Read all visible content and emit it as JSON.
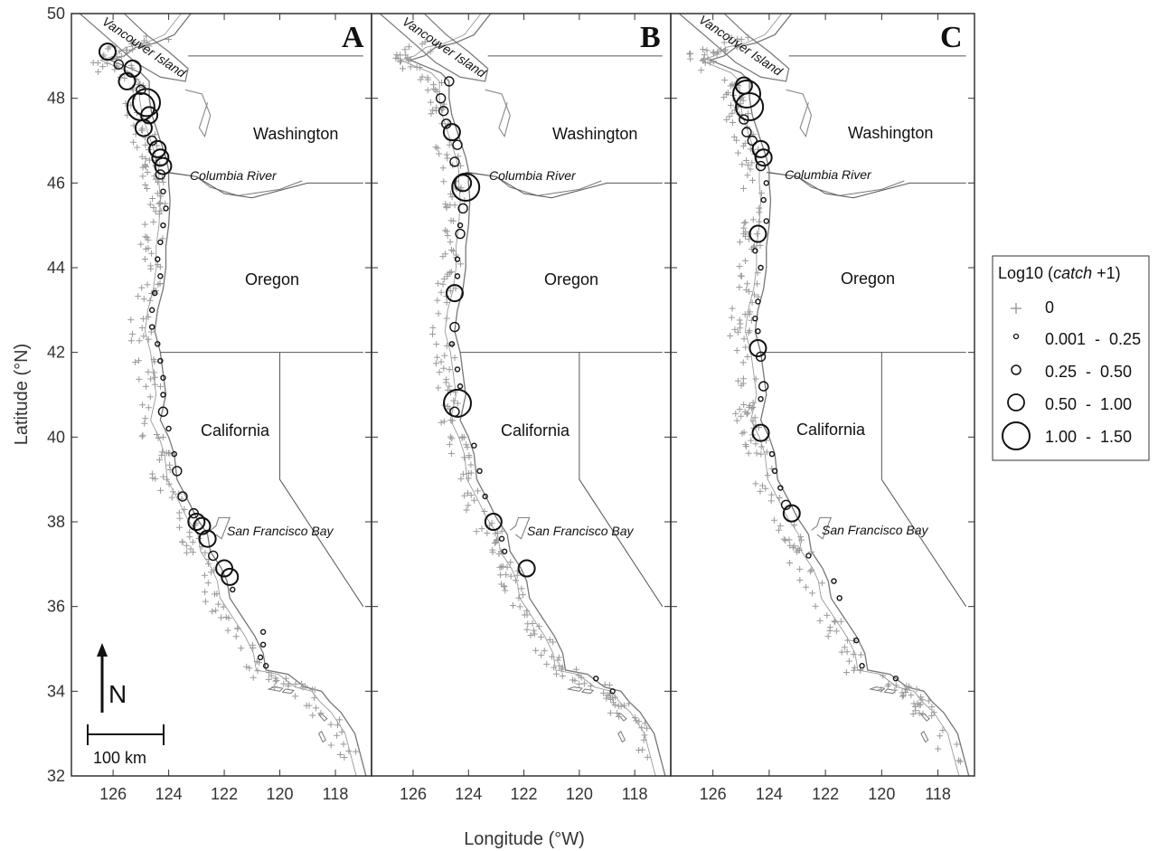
{
  "figure": {
    "panels": [
      "A",
      "B",
      "C"
    ],
    "states": [
      "Washington",
      "Oregon",
      "California"
    ],
    "places": [
      "Vancouver Island",
      "Columbia River",
      "San Francisco Bay"
    ],
    "x_label": "Longitude (°W)",
    "y_label": "Latitude (°N)",
    "x_ticks": [
      126,
      124,
      122,
      120,
      118
    ],
    "y_ticks": [
      50,
      48,
      46,
      44,
      42,
      40,
      38,
      36,
      34,
      32
    ],
    "xlim": [
      127.5,
      116.7
    ],
    "ylim": [
      32,
      50
    ],
    "north_arrow": "N",
    "scale_bar": "100 km"
  },
  "legend": {
    "title_prefix": "Log10 (",
    "title_italic": "catch",
    "title_suffix": " +1)",
    "entries": [
      {
        "label": "0",
        "marker": "plus"
      },
      {
        "label": "0.001  -  0.25",
        "marker": "circle-xs"
      },
      {
        "label": "0.25  -  0.50",
        "marker": "circle-s"
      },
      {
        "label": "0.50  -  1.00",
        "marker": "circle-m"
      },
      {
        "label": "1.00  -  1.50",
        "marker": "circle-l"
      }
    ]
  },
  "chart_data": {
    "type": "scatter",
    "x_label": "Longitude (°W)",
    "y_label": "Latitude (°N)",
    "xlim": [
      127.5,
      116.7
    ],
    "ylim": [
      32,
      50
    ],
    "series": [
      {
        "name": "A",
        "points": [
          [
            126.2,
            49.1,
            3
          ],
          [
            125.8,
            48.8,
            2
          ],
          [
            125.3,
            48.7,
            3
          ],
          [
            125.5,
            48.4,
            3
          ],
          [
            125.0,
            48.2,
            2
          ],
          [
            125.0,
            47.8,
            4
          ],
          [
            124.8,
            47.9,
            4
          ],
          [
            124.7,
            47.6,
            3
          ],
          [
            124.9,
            47.3,
            3
          ],
          [
            124.6,
            47.0,
            2
          ],
          [
            124.4,
            46.8,
            3
          ],
          [
            124.3,
            46.6,
            3
          ],
          [
            124.2,
            46.4,
            3
          ],
          [
            124.3,
            46.2,
            2
          ],
          [
            124.2,
            45.8,
            1
          ],
          [
            124.1,
            45.4,
            1
          ],
          [
            124.2,
            45.0,
            1
          ],
          [
            124.3,
            44.6,
            1
          ],
          [
            124.4,
            44.2,
            1
          ],
          [
            124.3,
            43.8,
            1
          ],
          [
            124.5,
            43.4,
            1
          ],
          [
            124.6,
            43.0,
            1
          ],
          [
            124.6,
            42.6,
            1
          ],
          [
            124.4,
            42.2,
            1
          ],
          [
            124.3,
            41.8,
            1
          ],
          [
            124.2,
            41.4,
            1
          ],
          [
            124.2,
            41.0,
            1
          ],
          [
            124.2,
            40.6,
            2
          ],
          [
            124.0,
            40.2,
            1
          ],
          [
            123.8,
            39.6,
            1
          ],
          [
            123.7,
            39.2,
            2
          ],
          [
            123.5,
            38.6,
            2
          ],
          [
            123.1,
            38.2,
            2
          ],
          [
            123.0,
            38.0,
            3
          ],
          [
            122.8,
            37.9,
            3
          ],
          [
            122.6,
            37.6,
            3
          ],
          [
            122.4,
            37.2,
            2
          ],
          [
            122.0,
            36.9,
            3
          ],
          [
            121.8,
            36.7,
            3
          ],
          [
            121.7,
            36.4,
            1
          ],
          [
            120.6,
            35.4,
            1
          ],
          [
            120.6,
            35.1,
            1
          ],
          [
            120.7,
            34.8,
            1
          ],
          [
            120.5,
            34.6,
            1
          ]
        ]
      },
      {
        "name": "B",
        "points": [
          [
            124.7,
            48.4,
            2
          ],
          [
            125.0,
            48.0,
            2
          ],
          [
            124.9,
            47.7,
            2
          ],
          [
            124.8,
            47.4,
            2
          ],
          [
            124.6,
            47.2,
            3
          ],
          [
            124.4,
            46.9,
            2
          ],
          [
            124.5,
            46.5,
            2
          ],
          [
            124.2,
            46.0,
            3
          ],
          [
            124.1,
            45.9,
            4
          ],
          [
            124.2,
            45.4,
            2
          ],
          [
            124.3,
            45.0,
            1
          ],
          [
            124.3,
            44.8,
            2
          ],
          [
            124.4,
            44.2,
            1
          ],
          [
            124.4,
            43.8,
            1
          ],
          [
            124.5,
            43.4,
            3
          ],
          [
            124.5,
            42.6,
            2
          ],
          [
            124.6,
            42.2,
            1
          ],
          [
            124.4,
            41.6,
            1
          ],
          [
            124.3,
            41.2,
            1
          ],
          [
            124.4,
            40.8,
            4
          ],
          [
            124.5,
            40.6,
            2
          ],
          [
            123.8,
            39.8,
            1
          ],
          [
            123.6,
            39.2,
            1
          ],
          [
            123.4,
            38.6,
            1
          ],
          [
            123.1,
            38.0,
            3
          ],
          [
            122.8,
            37.6,
            1
          ],
          [
            122.7,
            37.3,
            1
          ],
          [
            121.9,
            36.9,
            3
          ],
          [
            119.4,
            34.3,
            1
          ],
          [
            118.8,
            34.0,
            1
          ]
        ]
      },
      {
        "name": "C",
        "points": [
          [
            124.9,
            48.3,
            3
          ],
          [
            124.8,
            48.1,
            4
          ],
          [
            124.7,
            47.8,
            4
          ],
          [
            124.9,
            47.5,
            2
          ],
          [
            124.8,
            47.2,
            2
          ],
          [
            124.6,
            47.0,
            2
          ],
          [
            124.3,
            46.8,
            3
          ],
          [
            124.2,
            46.6,
            3
          ],
          [
            124.3,
            46.4,
            2
          ],
          [
            124.1,
            46.0,
            1
          ],
          [
            124.2,
            45.6,
            1
          ],
          [
            124.1,
            45.1,
            1
          ],
          [
            124.4,
            44.8,
            3
          ],
          [
            124.5,
            44.4,
            1
          ],
          [
            124.3,
            44.0,
            1
          ],
          [
            124.4,
            43.2,
            1
          ],
          [
            124.5,
            42.8,
            1
          ],
          [
            124.4,
            42.5,
            1
          ],
          [
            124.4,
            42.1,
            3
          ],
          [
            124.3,
            41.9,
            2
          ],
          [
            124.2,
            41.2,
            2
          ],
          [
            124.3,
            40.9,
            1
          ],
          [
            124.3,
            40.1,
            3
          ],
          [
            123.9,
            39.6,
            1
          ],
          [
            123.8,
            39.2,
            1
          ],
          [
            123.6,
            38.8,
            1
          ],
          [
            123.4,
            38.4,
            2
          ],
          [
            123.2,
            38.2,
            3
          ],
          [
            122.6,
            37.2,
            1
          ],
          [
            121.7,
            36.6,
            1
          ],
          [
            121.5,
            36.2,
            1
          ],
          [
            120.9,
            35.2,
            1
          ],
          [
            120.7,
            34.6,
            1
          ],
          [
            119.5,
            34.3,
            1
          ]
        ]
      }
    ]
  }
}
